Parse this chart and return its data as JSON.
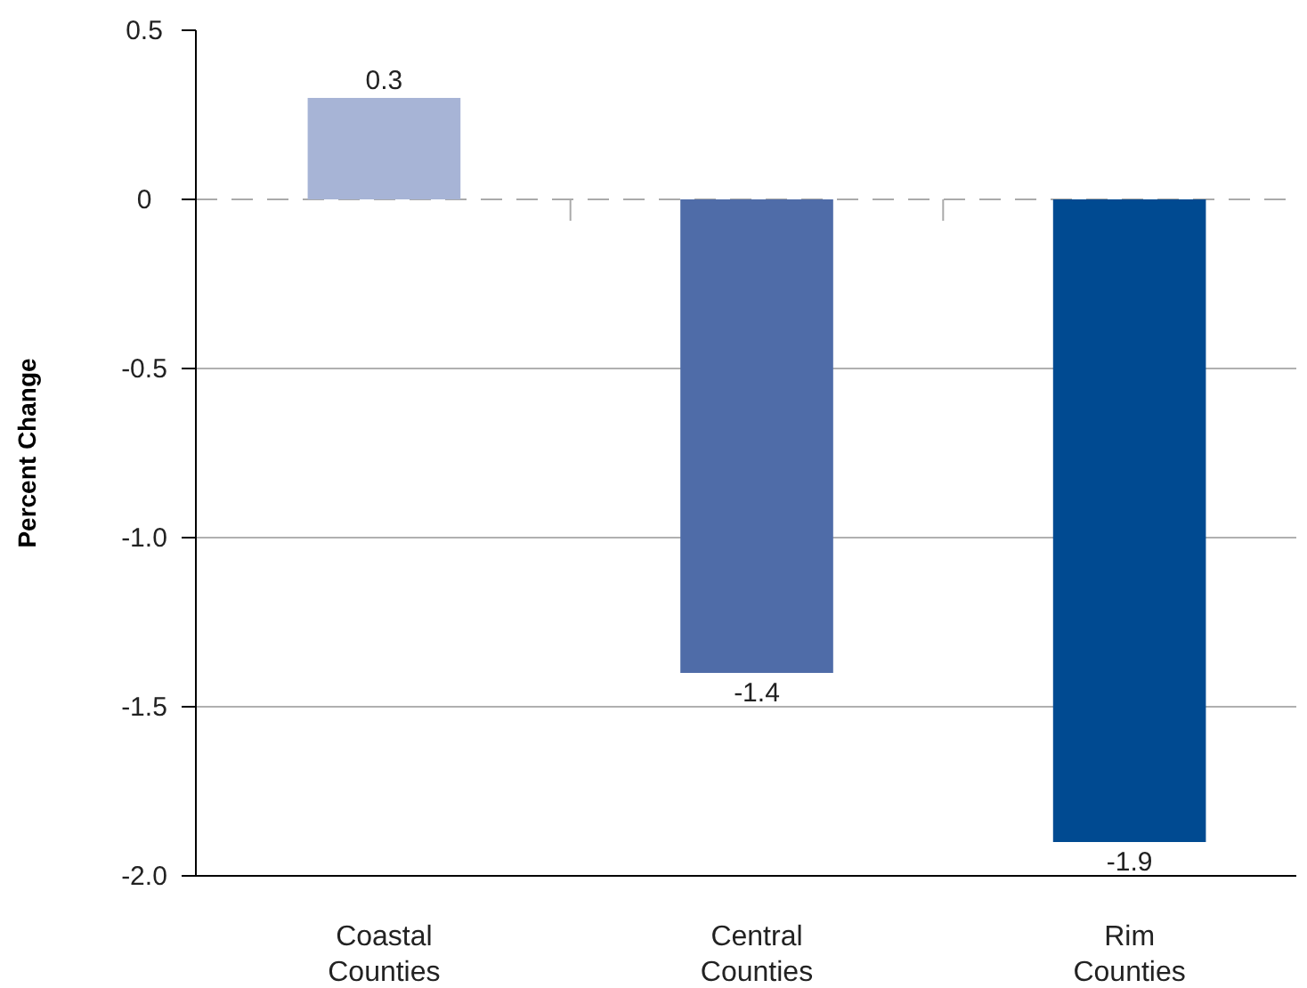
{
  "chart_data": {
    "type": "bar",
    "ylabel": "Percent Change",
    "categories": [
      "Coastal Counties",
      "Central Counties",
      "Rim Counties"
    ],
    "values": [
      0.3,
      -1.4,
      -1.9
    ],
    "colors": [
      "#a7b4d6",
      "#4f6ca8",
      "#004a91"
    ],
    "ylim": [
      -2.0,
      0.5
    ],
    "yticks": [
      0.5,
      0,
      -0.5,
      {
        "value": -1,
        "label": "-1.0"
      },
      -1.5,
      {
        "value": -2,
        "label": "-2.0"
      }
    ],
    "grid": "y",
    "data_labels": true,
    "ref_lines": [
      {
        "axis": "y",
        "value": 0,
        "color": "#aaaaaa",
        "line_style": "dashed"
      }
    ]
  }
}
